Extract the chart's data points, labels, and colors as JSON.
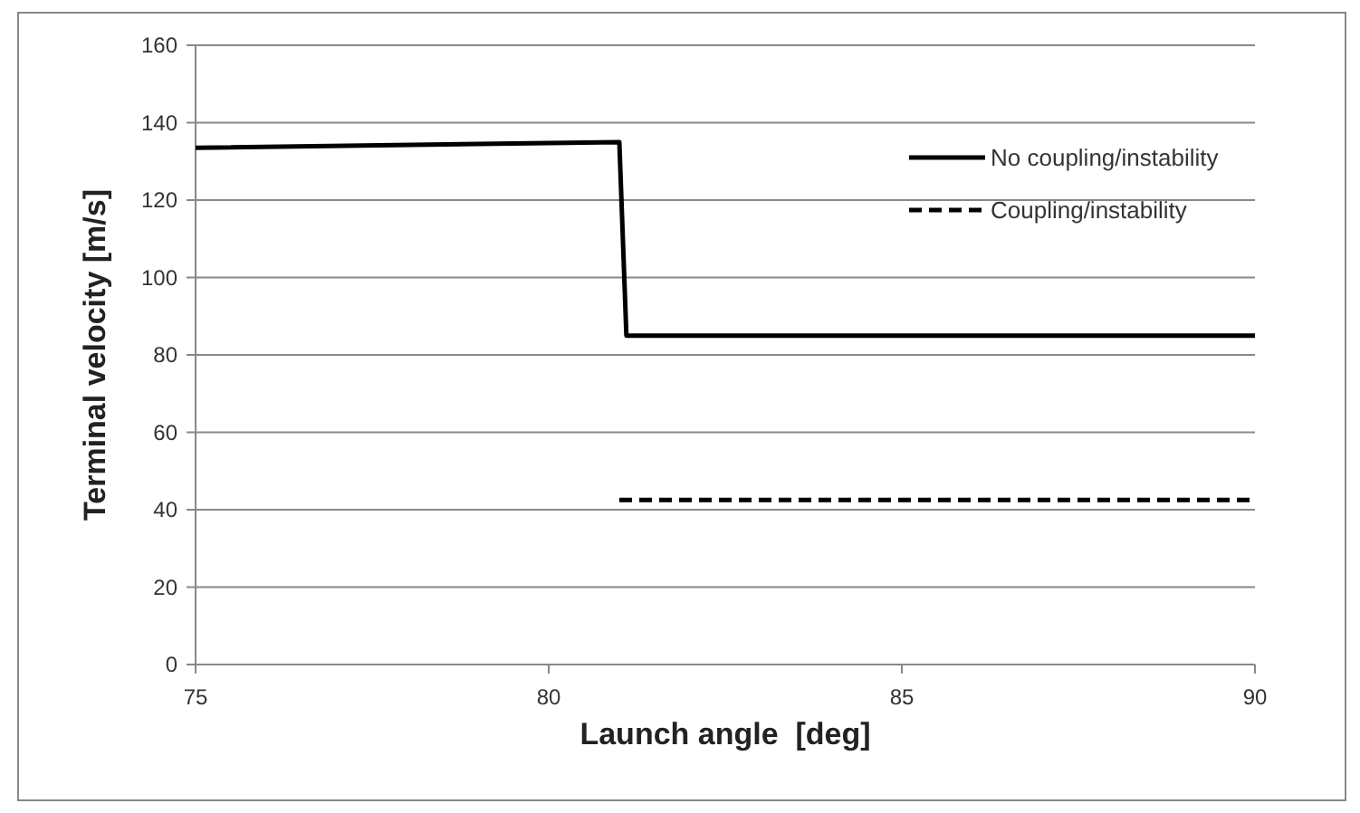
{
  "chart_data": {
    "type": "line",
    "xlabel": "Launch angle  [deg]",
    "ylabel": "Terminal velocity [m/s]",
    "xlim": [
      75,
      90
    ],
    "xticks": [
      75,
      80,
      85,
      90
    ],
    "ylim": [
      0,
      160
    ],
    "yticks": [
      0,
      20,
      40,
      60,
      80,
      100,
      120,
      140,
      160
    ],
    "grid": "y",
    "legend": "top right",
    "series": [
      {
        "name": "No coupling/instability",
        "color": "#000000",
        "line_style": "solid",
        "x": [
          75,
          81,
          81.1,
          90
        ],
        "values": [
          133.5,
          135,
          85,
          85
        ]
      },
      {
        "name": "Coupling/instability",
        "color": "#000000",
        "line_style": "dashed",
        "x": [
          81,
          90
        ],
        "values": [
          42.5,
          42.5
        ]
      }
    ]
  }
}
